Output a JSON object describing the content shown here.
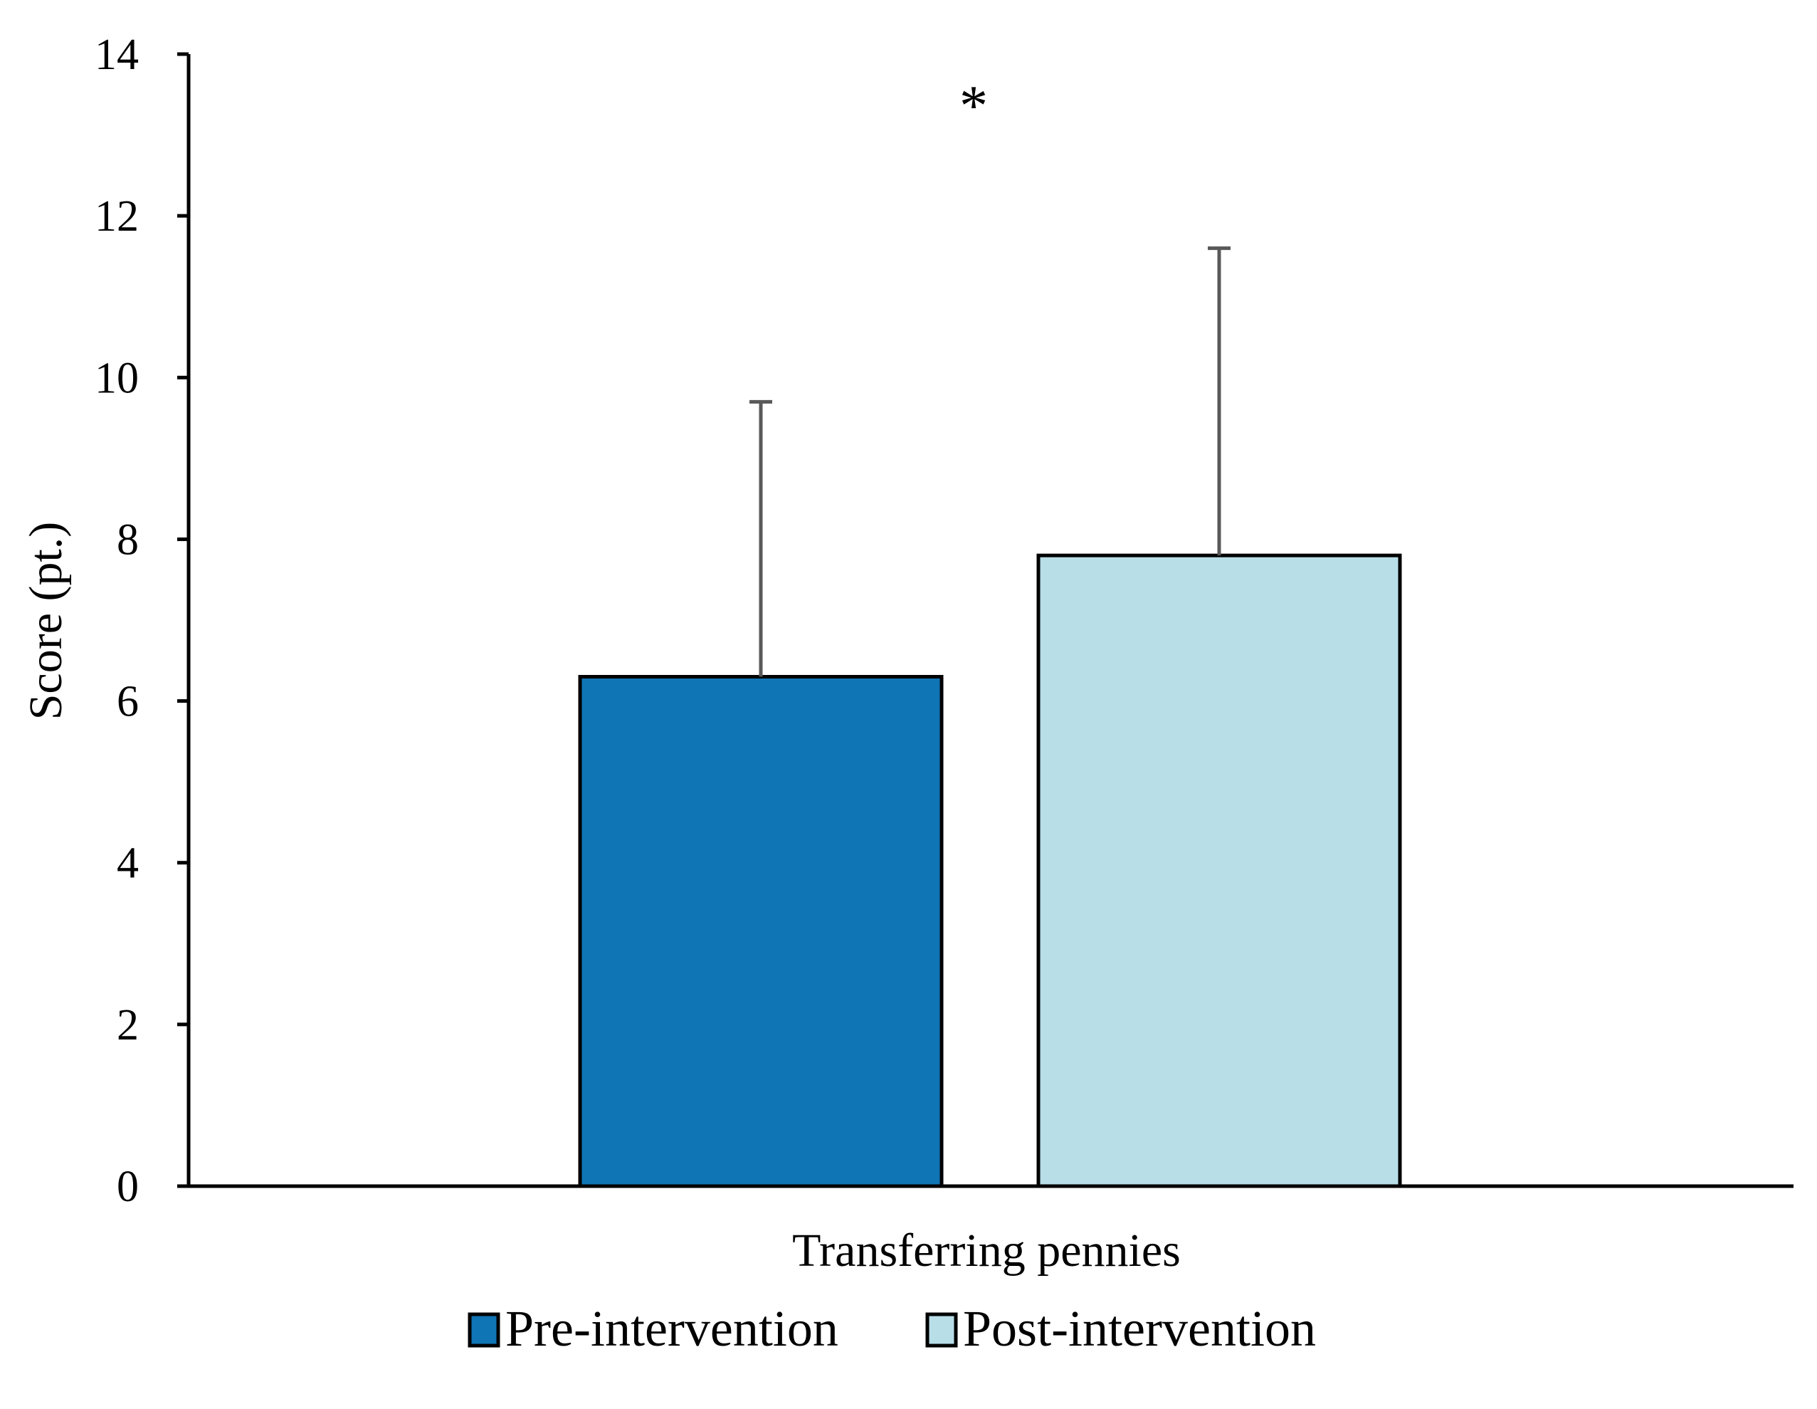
{
  "chart_data": {
    "type": "bar",
    "categories": [
      "Transferring pennies"
    ],
    "xlabel": "Transferring pennies",
    "ylabel": "Score (pt.)",
    "ylim": [
      0,
      14
    ],
    "yticks": [
      0,
      2,
      4,
      6,
      8,
      10,
      12,
      14
    ],
    "grid": false,
    "legend_position": "bottom",
    "series": [
      {
        "name": "Pre-intervention",
        "values": [
          6.3
        ],
        "error": [
          3.4
        ],
        "color": "#0f75b5"
      },
      {
        "name": "Post-intervention",
        "values": [
          7.8
        ],
        "error": [
          3.8
        ],
        "color": "#b8dee8"
      }
    ],
    "annotations": [
      {
        "text": "*",
        "between": [
          "Pre-intervention",
          "Post-intervention"
        ]
      }
    ],
    "colors": {
      "axis": "#000000",
      "error_bar": "#595959",
      "bar_outline": "#000000"
    }
  }
}
